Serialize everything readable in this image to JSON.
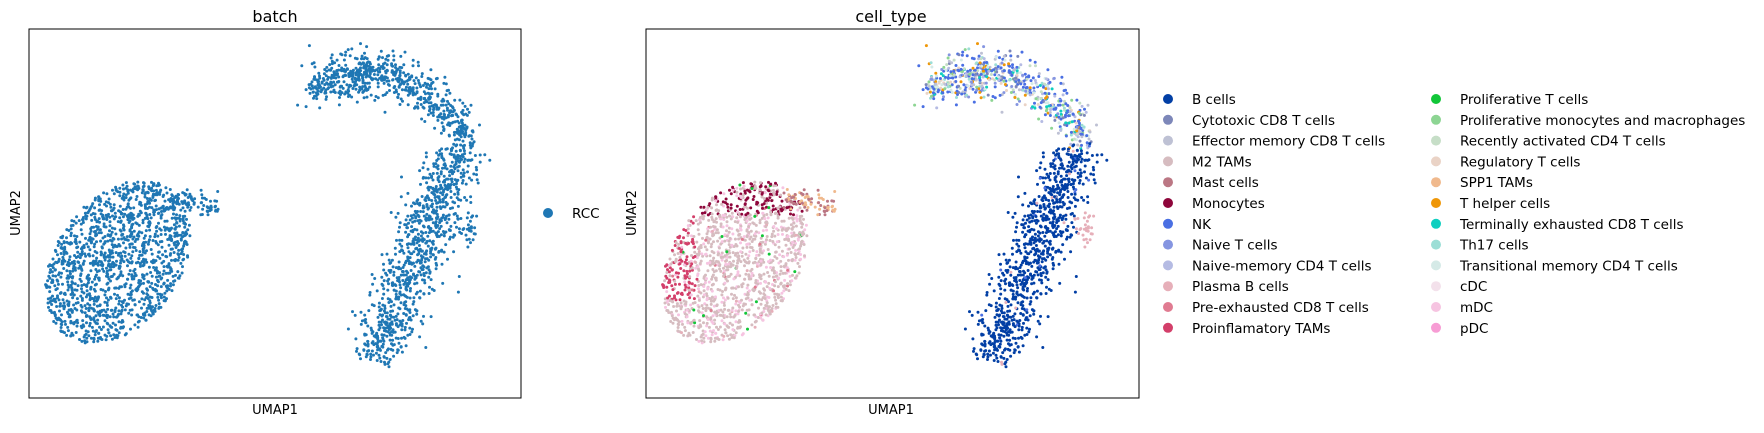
{
  "chart_data": [
    {
      "type": "scatter",
      "title": "batch",
      "xlabel": "UMAP1",
      "ylabel": "UMAP2",
      "legend_placement": "right",
      "legend": [
        {
          "label": "RCC",
          "color": "#1f77b4"
        }
      ]
    },
    {
      "type": "scatter",
      "title": "cell_type",
      "xlabel": "UMAP1",
      "ylabel": "UMAP2",
      "legend_placement": "right",
      "legend": [
        {
          "label": "B cells",
          "color": "#023fa5"
        },
        {
          "label": "Cytotoxic CD8 T cells",
          "color": "#7d87b9"
        },
        {
          "label": "Effector memory CD8 T cells",
          "color": "#bec1d4"
        },
        {
          "label": "M2 TAMs",
          "color": "#d6bcc0"
        },
        {
          "label": "Mast cells",
          "color": "#bb7784"
        },
        {
          "label": "Monocytes",
          "color": "#8e063b"
        },
        {
          "label": "NK",
          "color": "#4a6fe3"
        },
        {
          "label": "Naive T cells",
          "color": "#8595e1"
        },
        {
          "label": "Naive-memory CD4 T cells",
          "color": "#b5bbe3"
        },
        {
          "label": "Plasma B cells",
          "color": "#e6afb9"
        },
        {
          "label": "Pre-exhausted CD8 T cells",
          "color": "#e07b91"
        },
        {
          "label": "Proinflamatory TAMs",
          "color": "#d33f6a"
        },
        {
          "label": "Proliferative T cells",
          "color": "#11c638"
        },
        {
          "label": "Proliferative monocytes and macrophages",
          "color": "#8dd593"
        },
        {
          "label": "Recently activated CD4 T cells",
          "color": "#c6dec7"
        },
        {
          "label": "Regulatory T cells",
          "color": "#ead3c6"
        },
        {
          "label": "SPP1 TAMs",
          "color": "#f0b98d"
        },
        {
          "label": "T helper cells",
          "color": "#ef9708"
        },
        {
          "label": "Terminally exhausted CD8 T cells",
          "color": "#0fcfc0"
        },
        {
          "label": "Th17 cells",
          "color": "#9cded6"
        },
        {
          "label": "Transitional memory CD4 T cells",
          "color": "#d5eae7"
        },
        {
          "label": "cDC",
          "color": "#f3e1eb"
        },
        {
          "label": "mDC",
          "color": "#f6c4e1"
        },
        {
          "label": "pDC",
          "color": "#f79cd4"
        }
      ]
    }
  ]
}
